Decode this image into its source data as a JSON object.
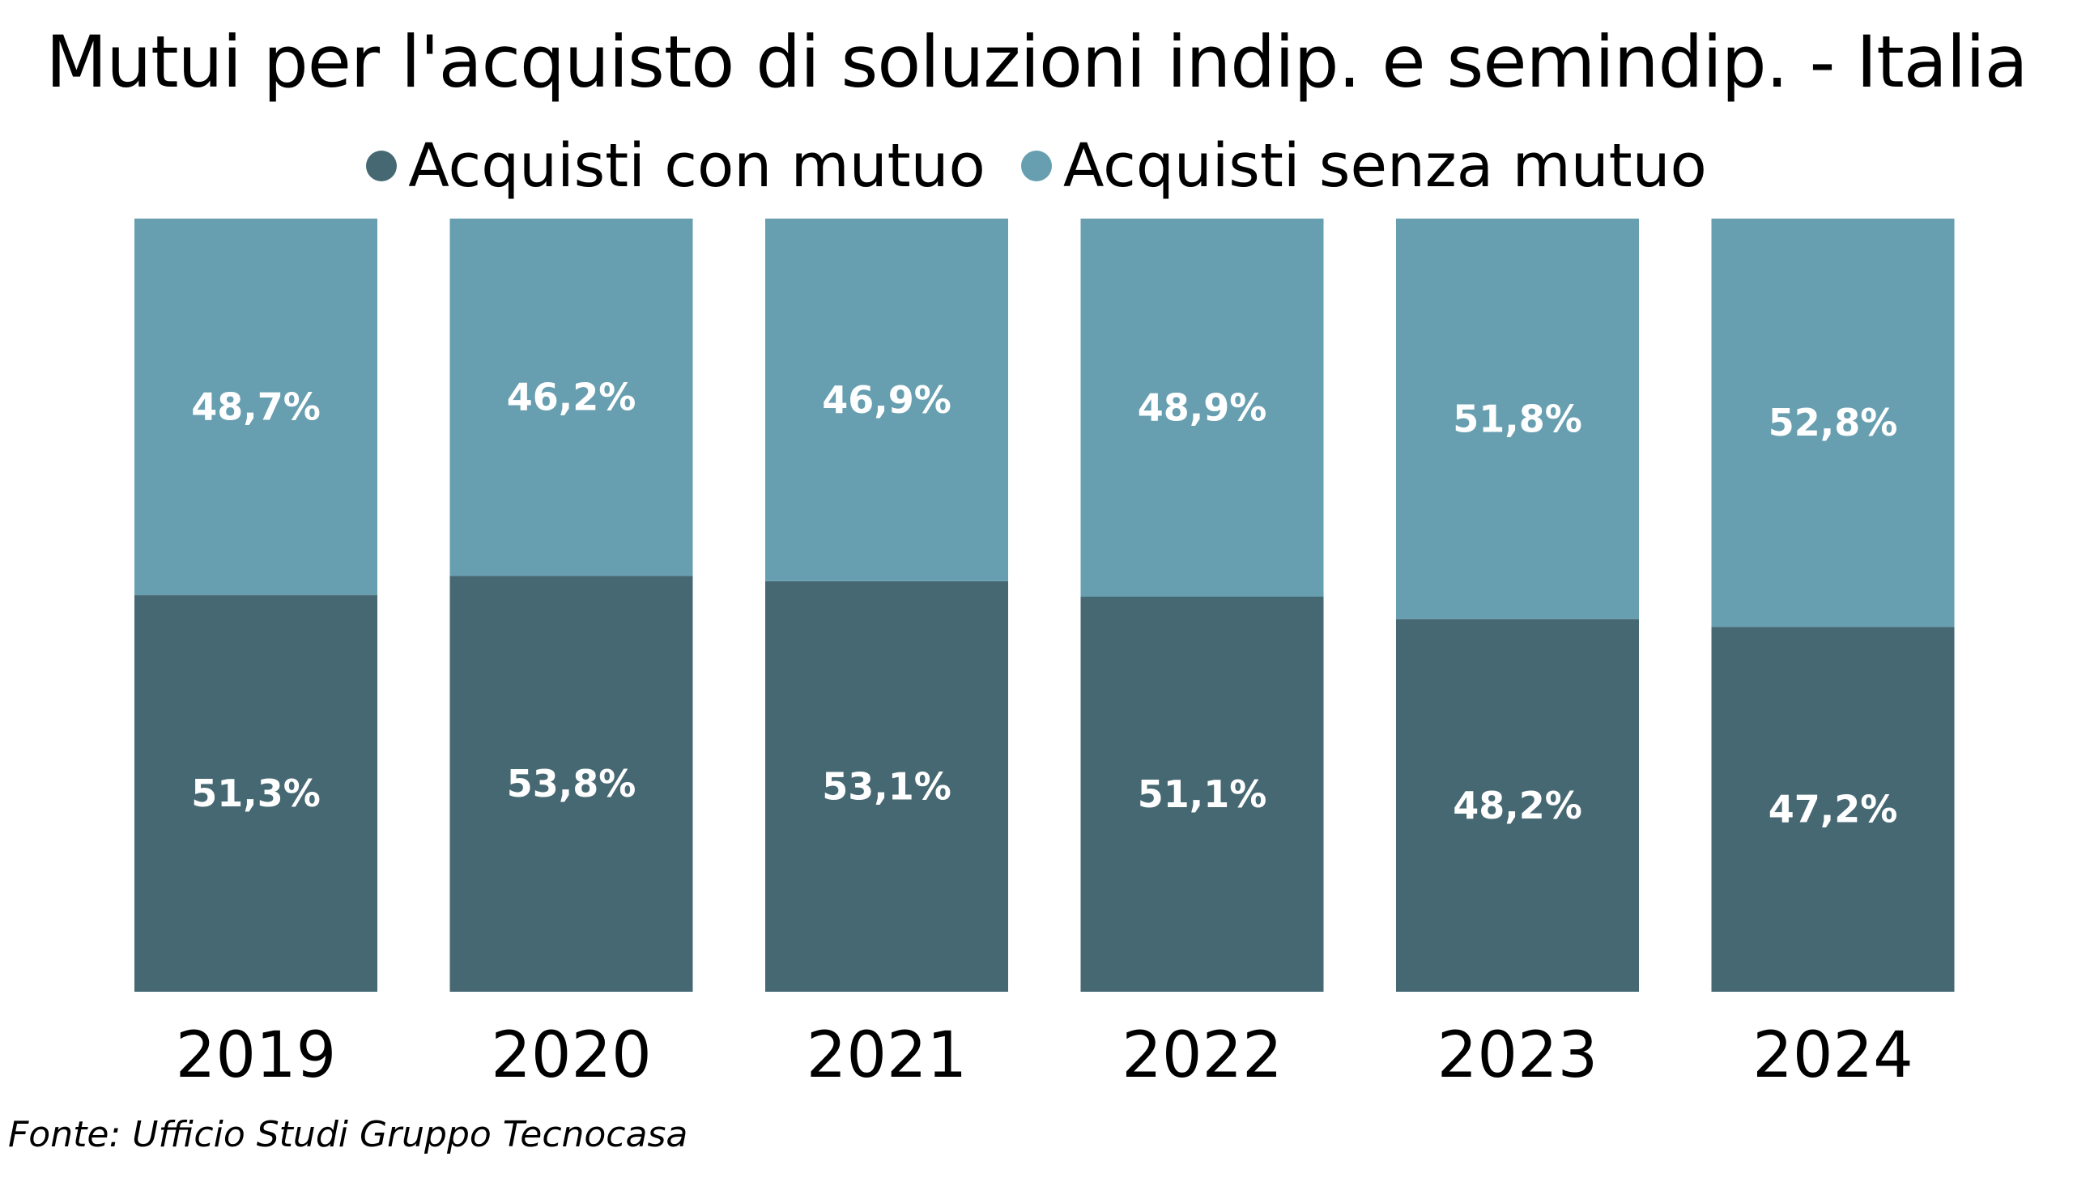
{
  "chart_data": {
    "type": "bar",
    "stacked": true,
    "title": "Mutui per l'acquisto  di soluzioni indip. e semindip. - Italia",
    "categories": [
      "2019",
      "2020",
      "2021",
      "2022",
      "2023",
      "2024"
    ],
    "series": [
      {
        "name": "Acquisti con mutuo",
        "values": [
          51.3,
          53.8,
          53.1,
          51.1,
          48.2,
          47.2
        ],
        "labels": [
          "51,3%",
          "53,8%",
          "53,1%",
          "51,1%",
          "48,2%",
          "47,2%"
        ],
        "color": "#466873"
      },
      {
        "name": "Acquisti senza mutuo",
        "values": [
          48.7,
          46.2,
          46.9,
          48.9,
          51.8,
          52.8
        ],
        "labels": [
          "48,7%",
          "46,2%",
          "46,9%",
          "48,9%",
          "51,8%",
          "52,8%"
        ],
        "color": "#679fb0"
      }
    ],
    "ylim": [
      0,
      100
    ],
    "unit": "%",
    "grid": false,
    "legend_position": "top"
  },
  "source": "Fonte: Ufficio Studi Gruppo Tecnocasa"
}
